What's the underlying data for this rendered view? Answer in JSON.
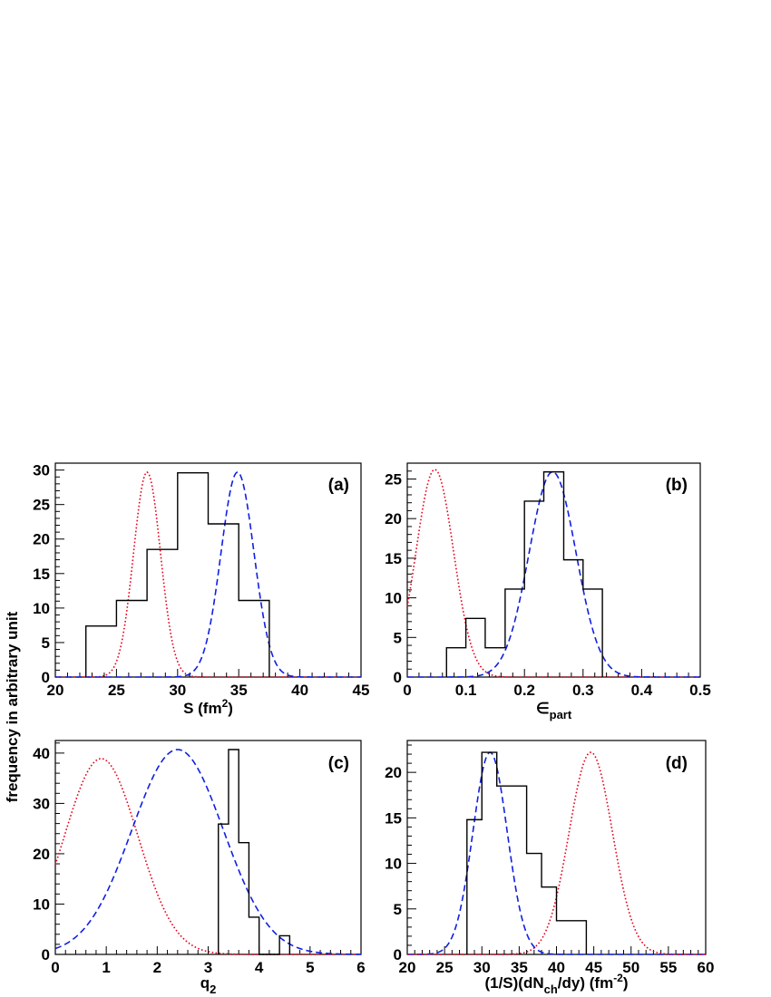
{
  "figure": {
    "ylabel": "frequency in arbitrary unit"
  },
  "chart_data": [
    {
      "type": "bar",
      "panel": "(a)",
      "xlabel": "S (fm²)",
      "xlabel_main": "S (fm",
      "xlabel_sup": "2",
      "xlabel_tail": ")",
      "xlim": [
        20,
        45
      ],
      "ylim": [
        0,
        31
      ],
      "xticks": [
        20,
        25,
        30,
        35,
        40,
        45
      ],
      "yticks": [
        0,
        5,
        10,
        15,
        20,
        25,
        30
      ],
      "hist": {
        "edges": [
          22.5,
          25,
          27.5,
          30,
          32.5,
          35,
          37.5
        ],
        "values": [
          7.4,
          11.1,
          18.5,
          29.6,
          22.2,
          11.1
        ]
      },
      "curves": [
        {
          "style": "dotted",
          "color": "#e8001c",
          "mean": 27.5,
          "sigma": 1.1,
          "peak": 29.7
        },
        {
          "style": "dashed",
          "color": "#1020e0",
          "mean": 34.9,
          "sigma": 1.35,
          "peak": 29.7
        }
      ]
    },
    {
      "type": "bar",
      "panel": "(b)",
      "xlabel": "∈part",
      "xlabel_main": "∈",
      "xlabel_sub": "part",
      "xlim": [
        0,
        0.5
      ],
      "ylim": [
        0,
        27
      ],
      "xticks": [
        0,
        0.1,
        0.2,
        0.3,
        0.4,
        0.5
      ],
      "yticks": [
        0,
        5,
        10,
        15,
        20,
        25
      ],
      "hist": {
        "edges": [
          0.067,
          0.1,
          0.133,
          0.167,
          0.2,
          0.233,
          0.267,
          0.3,
          0.333
        ],
        "values": [
          3.7,
          7.4,
          3.7,
          11.1,
          22.2,
          25.9,
          14.8,
          11.1
        ]
      },
      "curves": [
        {
          "style": "dotted",
          "color": "#e8001c",
          "mean": 0.047,
          "sigma": 0.032,
          "peak": 26.2
        },
        {
          "style": "dashed",
          "color": "#1020e0",
          "mean": 0.248,
          "sigma": 0.04,
          "peak": 25.9
        }
      ]
    },
    {
      "type": "bar",
      "panel": "(c)",
      "xlabel": "q2",
      "xlabel_main": "q",
      "xlabel_sub": "2",
      "xlim": [
        0,
        6
      ],
      "ylim": [
        0,
        42.5
      ],
      "xticks": [
        0,
        1,
        2,
        3,
        4,
        5,
        6
      ],
      "yticks": [
        0,
        10,
        20,
        30,
        40
      ],
      "hist": {
        "edges": [
          3.2,
          3.4,
          3.6,
          3.8,
          4.0,
          4.2,
          4.4,
          4.6
        ],
        "values": [
          25.9,
          40.7,
          22.2,
          7.4,
          0,
          0,
          3.7
        ]
      },
      "curves": [
        {
          "style": "dotted",
          "color": "#e8001c",
          "mean": 0.9,
          "sigma": 0.72,
          "peak": 38.9
        },
        {
          "style": "dashed",
          "color": "#1020e0",
          "mean": 2.4,
          "sigma": 0.9,
          "peak": 40.7
        }
      ]
    },
    {
      "type": "bar",
      "panel": "(d)",
      "xlabel": "(1/S)(dNch/dy) (fm⁻²)",
      "xlabel_parts": [
        "(1/S)(dN",
        "ch",
        "/dy) (fm",
        "-2",
        ")"
      ],
      "xlim": [
        20,
        60
      ],
      "ylim": [
        0,
        23.5
      ],
      "xticks": [
        20,
        25,
        30,
        35,
        40,
        45,
        50,
        55,
        60
      ],
      "yticks": [
        0,
        5,
        10,
        15,
        20
      ],
      "hist": {
        "edges": [
          28,
          30,
          32,
          34,
          36,
          38,
          40,
          42,
          44
        ],
        "values": [
          14.8,
          22.2,
          18.5,
          18.5,
          11.1,
          7.4,
          3.7,
          3.7
        ]
      },
      "curves": [
        {
          "style": "dashed",
          "color": "#1020e0",
          "mean": 31.1,
          "sigma": 2.3,
          "peak": 22.2
        },
        {
          "style": "dotted",
          "color": "#e8001c",
          "mean": 44.6,
          "sigma": 2.9,
          "peak": 22.2
        }
      ]
    }
  ]
}
